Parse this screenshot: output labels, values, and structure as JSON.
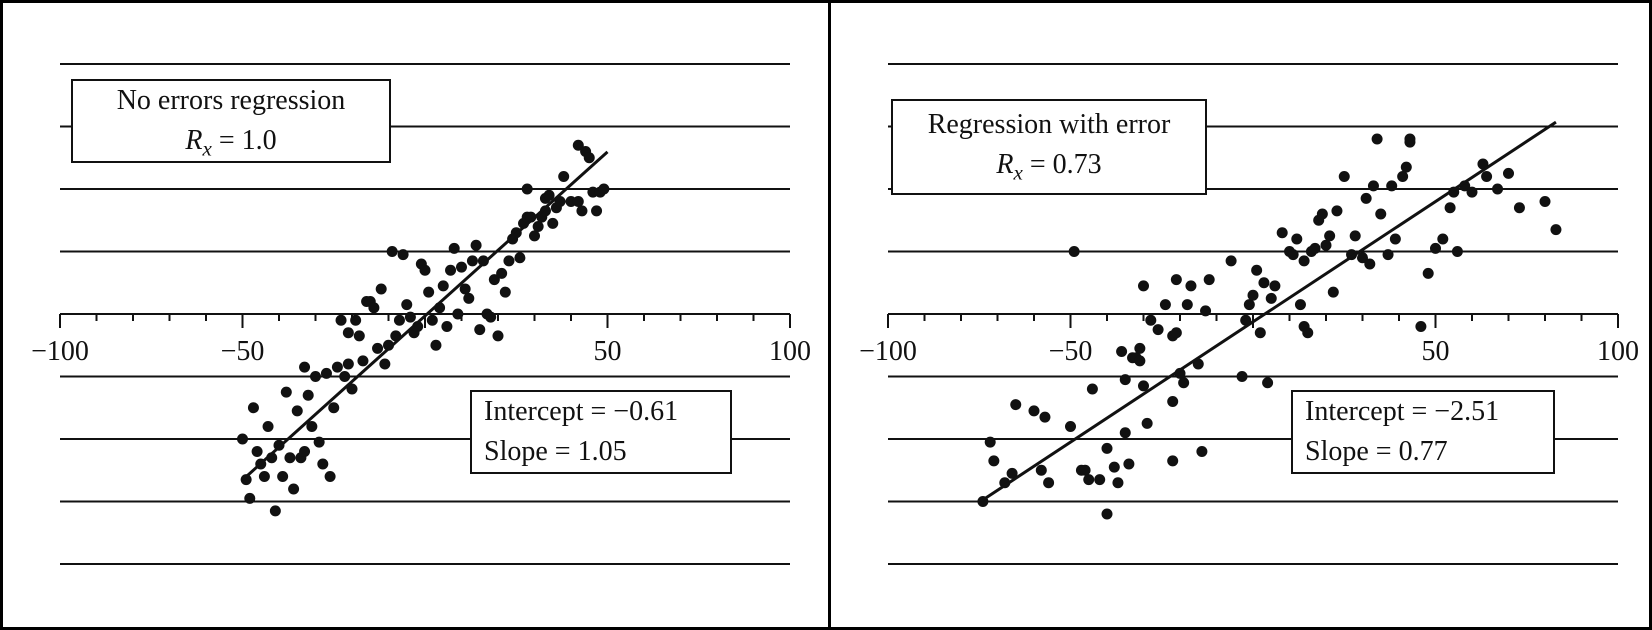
{
  "chart_data": [
    {
      "type": "scatter",
      "title": "No errors regression",
      "r_label": "R",
      "r_subscript": "x",
      "r_value": "= 1.0",
      "intercept_text": "Intercept = −0.61",
      "slope_text": "Slope = 1.05",
      "intercept": -0.61,
      "slope": 1.05,
      "xlim": [
        -100,
        100
      ],
      "ylim": [
        -80,
        80
      ],
      "grid": "horizontal",
      "xticks": [
        -100,
        -50,
        50,
        100
      ],
      "xtick_labels": [
        "−100",
        "−50",
        "50",
        "100"
      ],
      "fit_line": {
        "x": [
          -50,
          50
        ]
      },
      "points": [
        [
          -49,
          -53
        ],
        [
          -50,
          -40
        ],
        [
          -48,
          -59
        ],
        [
          -47,
          -30
        ],
        [
          -46,
          -44
        ],
        [
          -45,
          -48
        ],
        [
          -44,
          -52
        ],
        [
          -43,
          -36
        ],
        [
          -42,
          -46
        ],
        [
          -41,
          -63
        ],
        [
          -40,
          -42
        ],
        [
          -39,
          -52
        ],
        [
          -38,
          -25
        ],
        [
          -37,
          -46
        ],
        [
          -36,
          -56
        ],
        [
          -35,
          -31
        ],
        [
          -34,
          -46
        ],
        [
          -33,
          -17
        ],
        [
          -33,
          -44
        ],
        [
          -32,
          -26
        ],
        [
          -31,
          -36
        ],
        [
          -30,
          -20
        ],
        [
          -29,
          -41
        ],
        [
          -28,
          -48
        ],
        [
          -27,
          -19
        ],
        [
          -26,
          -52
        ],
        [
          -25,
          -30
        ],
        [
          -24,
          -17
        ],
        [
          -23,
          -2
        ],
        [
          -22,
          -20
        ],
        [
          -21,
          -6
        ],
        [
          -21,
          -16
        ],
        [
          -20,
          -24
        ],
        [
          -19,
          -2
        ],
        [
          -18,
          -7
        ],
        [
          -17,
          -15
        ],
        [
          -16,
          4
        ],
        [
          -15,
          4
        ],
        [
          -14,
          2
        ],
        [
          -13,
          -11
        ],
        [
          -12,
          8
        ],
        [
          -11,
          -16
        ],
        [
          -10,
          -10
        ],
        [
          -9,
          20
        ],
        [
          -8,
          -7
        ],
        [
          -7,
          -2
        ],
        [
          -6,
          19
        ],
        [
          -5,
          3
        ],
        [
          -4,
          -1
        ],
        [
          -3,
          -6
        ],
        [
          -2,
          -4
        ],
        [
          -1,
          16
        ],
        [
          0,
          14
        ],
        [
          1,
          7
        ],
        [
          2,
          -2
        ],
        [
          3,
          -10
        ],
        [
          4,
          2
        ],
        [
          5,
          9
        ],
        [
          6,
          -4
        ],
        [
          7,
          14
        ],
        [
          8,
          21
        ],
        [
          9,
          0
        ],
        [
          10,
          15
        ],
        [
          11,
          8
        ],
        [
          12,
          5
        ],
        [
          13,
          17
        ],
        [
          14,
          22
        ],
        [
          15,
          -5
        ],
        [
          16,
          17
        ],
        [
          17,
          0
        ],
        [
          18,
          -1
        ],
        [
          19,
          11
        ],
        [
          20,
          -7
        ],
        [
          21,
          13
        ],
        [
          22,
          7
        ],
        [
          23,
          17
        ],
        [
          24,
          24
        ],
        [
          25,
          26
        ],
        [
          26,
          18
        ],
        [
          27,
          29
        ],
        [
          28,
          40
        ],
        [
          28,
          31
        ],
        [
          29,
          31
        ],
        [
          30,
          25
        ],
        [
          31,
          28
        ],
        [
          32,
          31
        ],
        [
          33,
          33
        ],
        [
          33,
          37
        ],
        [
          34,
          38
        ],
        [
          35,
          29
        ],
        [
          36,
          34
        ],
        [
          37,
          36
        ],
        [
          38,
          44
        ],
        [
          40,
          36
        ],
        [
          42,
          36
        ],
        [
          42,
          54
        ],
        [
          43,
          33
        ],
        [
          44,
          52
        ],
        [
          45,
          50
        ],
        [
          46,
          39
        ],
        [
          47,
          33
        ],
        [
          48,
          39
        ],
        [
          49,
          40
        ]
      ]
    },
    {
      "type": "scatter",
      "title": "Regression with error",
      "r_label": "R",
      "r_subscript": "x",
      "r_value": "= 0.73",
      "intercept_text": "Intercept = −2.51",
      "slope_text": "Slope = 0.77",
      "intercept": -2.51,
      "slope": 0.77,
      "xlim": [
        -100,
        100
      ],
      "ylim": [
        -80,
        80
      ],
      "grid": "horizontal",
      "xticks": [
        -100,
        -50,
        50,
        100
      ],
      "xtick_labels": [
        "−100",
        "−50",
        "50",
        "100"
      ],
      "fit_line": {
        "x": [
          -74,
          83
        ]
      },
      "points": [
        [
          -74,
          -60
        ],
        [
          -72,
          -41
        ],
        [
          -71,
          -47
        ],
        [
          -68,
          -54
        ],
        [
          -66,
          -51
        ],
        [
          -65,
          -29
        ],
        [
          -60,
          -31
        ],
        [
          -58,
          -50
        ],
        [
          -57,
          -33
        ],
        [
          -56,
          -54
        ],
        [
          -50,
          -36
        ],
        [
          -49,
          20
        ],
        [
          -47,
          -50
        ],
        [
          -46,
          -50
        ],
        [
          -45,
          -53
        ],
        [
          -44,
          -24
        ],
        [
          -42,
          -53
        ],
        [
          -40,
          -43
        ],
        [
          -40,
          -64
        ],
        [
          -38,
          -49
        ],
        [
          -37,
          -54
        ],
        [
          -36,
          -12
        ],
        [
          -35,
          -21
        ],
        [
          -35,
          -38
        ],
        [
          -34,
          -48
        ],
        [
          -33,
          -14
        ],
        [
          -32,
          -14
        ],
        [
          -31,
          -15
        ],
        [
          -31,
          -11
        ],
        [
          -30,
          -23
        ],
        [
          -30,
          9
        ],
        [
          -29,
          -35
        ],
        [
          -28,
          -2
        ],
        [
          -26,
          -5
        ],
        [
          -24,
          3
        ],
        [
          -22,
          -28
        ],
        [
          -22,
          -7
        ],
        [
          -22,
          -47
        ],
        [
          -21,
          11
        ],
        [
          -21,
          -6
        ],
        [
          -20,
          -19
        ],
        [
          -19,
          -22
        ],
        [
          -18,
          3
        ],
        [
          -17,
          9
        ],
        [
          -15,
          -16
        ],
        [
          -14,
          -44
        ],
        [
          -13,
          1
        ],
        [
          -12,
          11
        ],
        [
          -6,
          17
        ],
        [
          -3,
          -20
        ],
        [
          -2,
          -2
        ],
        [
          -1,
          3
        ],
        [
          0,
          6
        ],
        [
          1,
          14
        ],
        [
          2,
          -6
        ],
        [
          3,
          10
        ],
        [
          4,
          -22
        ],
        [
          5,
          5
        ],
        [
          6,
          9
        ],
        [
          8,
          26
        ],
        [
          10,
          20
        ],
        [
          11,
          19
        ],
        [
          12,
          24
        ],
        [
          13,
          3
        ],
        [
          14,
          17
        ],
        [
          14,
          -4
        ],
        [
          15,
          -6
        ],
        [
          16,
          20
        ],
        [
          17,
          21
        ],
        [
          18,
          30
        ],
        [
          19,
          32
        ],
        [
          20,
          22
        ],
        [
          21,
          25
        ],
        [
          22,
          7
        ],
        [
          23,
          33
        ],
        [
          25,
          44
        ],
        [
          27,
          19
        ],
        [
          28,
          25
        ],
        [
          30,
          18
        ],
        [
          31,
          37
        ],
        [
          32,
          16
        ],
        [
          33,
          41
        ],
        [
          34,
          56
        ],
        [
          35,
          32
        ],
        [
          37,
          19
        ],
        [
          38,
          41
        ],
        [
          39,
          24
        ],
        [
          41,
          44
        ],
        [
          42,
          47
        ],
        [
          43,
          55
        ],
        [
          43,
          56
        ],
        [
          46,
          -4
        ],
        [
          48,
          13
        ],
        [
          50,
          21
        ],
        [
          52,
          24
        ],
        [
          54,
          34
        ],
        [
          55,
          39
        ],
        [
          56,
          20
        ],
        [
          58,
          41
        ],
        [
          60,
          39
        ],
        [
          63,
          48
        ],
        [
          64,
          44
        ],
        [
          67,
          40
        ],
        [
          70,
          45
        ],
        [
          73,
          34
        ],
        [
          80,
          36
        ],
        [
          83,
          27
        ]
      ]
    }
  ]
}
